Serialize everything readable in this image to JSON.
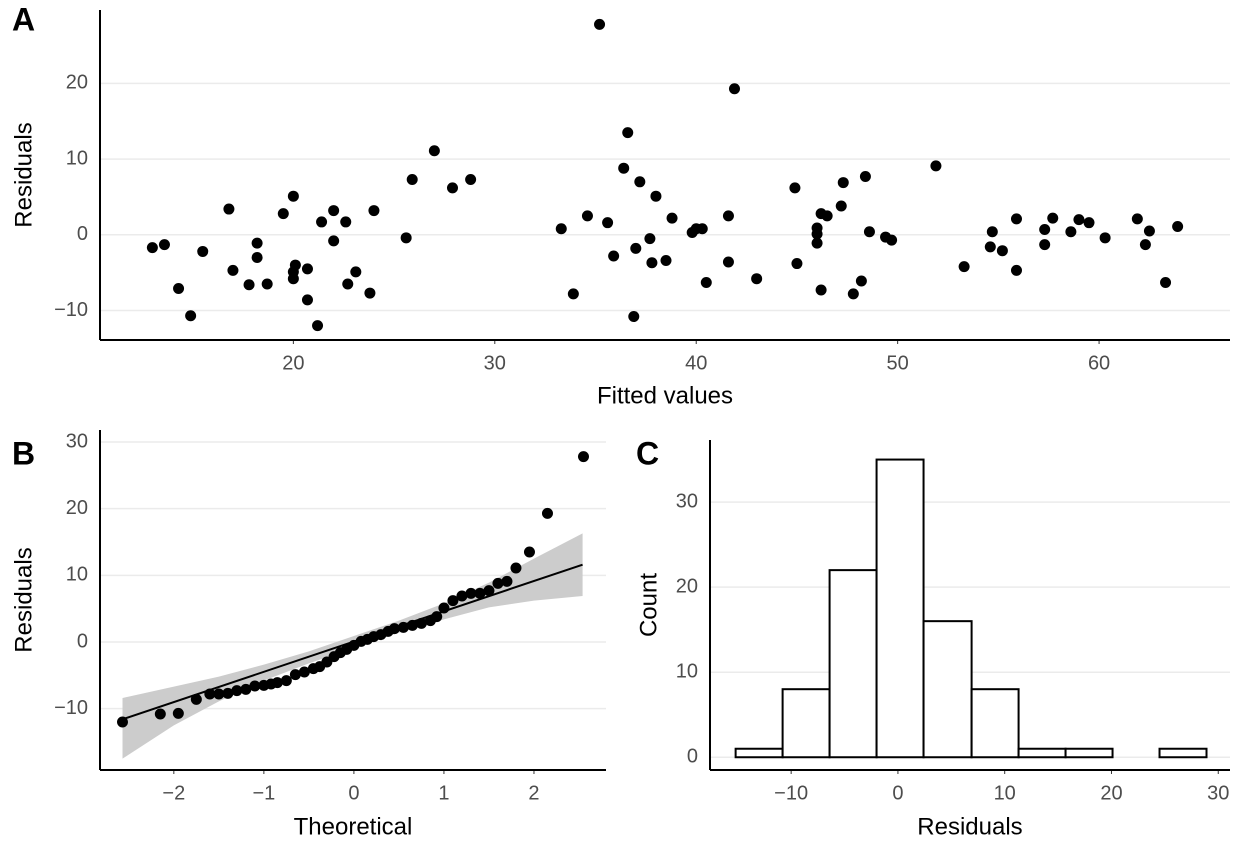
{
  "chart_data": [
    {
      "type": "scatter",
      "panel_label": "A",
      "x_label": "Fitted values",
      "y_label": "Residuals",
      "color": "#000000",
      "x": [
        13.0,
        13.6,
        14.3,
        14.9,
        15.5,
        16.8,
        17.0,
        17.8,
        18.2,
        18.2,
        18.7,
        19.5,
        20.0,
        20.0,
        20.0,
        20.1,
        20.7,
        20.7,
        21.2,
        21.4,
        22.0,
        22.0,
        22.6,
        22.7,
        23.1,
        23.8,
        24.0,
        25.6,
        25.9,
        27.0,
        27.9,
        28.8,
        33.3,
        33.9,
        34.6,
        35.2,
        35.6,
        35.9,
        36.4,
        36.6,
        36.9,
        37.0,
        37.2,
        37.7,
        37.8,
        38.0,
        38.5,
        38.8,
        39.8,
        40.0,
        40.3,
        40.5,
        41.6,
        41.6,
        41.9,
        43.0,
        44.9,
        45.0,
        46.0,
        46.0,
        46.0,
        46.2,
        46.2,
        46.5,
        47.2,
        47.3,
        47.8,
        48.2,
        48.4,
        48.6,
        49.4,
        49.7,
        51.9,
        53.3,
        54.6,
        54.7,
        55.2,
        55.9,
        55.9,
        57.3,
        57.3,
        57.7,
        58.6,
        59.0,
        59.5,
        60.3,
        61.9,
        62.3,
        62.5,
        63.3,
        63.9
      ],
      "y": [
        -1.7,
        -1.3,
        -7.1,
        -10.7,
        -2.2,
        3.4,
        -4.7,
        -6.6,
        -1.1,
        -3.0,
        -6.5,
        2.8,
        5.1,
        -5.8,
        -4.9,
        -4.0,
        -4.5,
        -8.6,
        -12.0,
        1.7,
        -0.8,
        3.2,
        1.7,
        -6.5,
        -4.9,
        -7.7,
        3.2,
        -0.4,
        7.3,
        11.1,
        6.2,
        7.3,
        0.8,
        -7.8,
        2.5,
        27.8,
        1.6,
        -2.8,
        8.8,
        13.5,
        -10.8,
        -1.8,
        7.0,
        -0.5,
        -3.7,
        5.1,
        -3.4,
        2.2,
        0.3,
        0.8,
        0.8,
        -6.3,
        2.5,
        -3.6,
        19.3,
        -5.8,
        6.2,
        -3.8,
        0.1,
        0.9,
        -1.1,
        2.8,
        -7.3,
        2.5,
        3.8,
        6.9,
        -7.8,
        -6.1,
        7.7,
        0.4,
        -0.3,
        -0.7,
        9.1,
        -4.2,
        -1.6,
        0.4,
        -2.1,
        2.1,
        -4.7,
        -1.3,
        0.7,
        2.2,
        0.4,
        2.0,
        1.6,
        -0.4,
        2.1,
        -1.3,
        0.5,
        -6.3,
        1.1
      ],
      "xlim": [
        10.4,
        66.5
      ],
      "ylim": [
        -13.9,
        29.7
      ],
      "xticks": [
        20,
        30,
        40,
        50,
        60
      ],
      "yticks": [
        {
          "value": -10,
          "label": "−10"
        },
        0,
        10,
        20
      ],
      "grid": true
    },
    {
      "type": "qq",
      "panel_label": "B",
      "x_label": "Theoretical",
      "y_label": "Residuals",
      "color": "#000000",
      "x": [
        -2.57,
        -2.15,
        -1.95,
        -1.75,
        -1.6,
        -1.5,
        -1.4,
        -1.3,
        -1.2,
        -1.1,
        -1.0,
        -0.92,
        -0.85,
        -0.75,
        -0.65,
        -0.55,
        -0.45,
        -0.38,
        -0.3,
        -0.22,
        -0.15,
        -0.08,
        0.0,
        0.08,
        0.15,
        0.22,
        0.3,
        0.38,
        0.45,
        0.55,
        0.65,
        0.75,
        0.85,
        0.92,
        1.0,
        1.1,
        1.2,
        1.3,
        1.4,
        1.5,
        1.6,
        1.7,
        1.8,
        1.95,
        2.15,
        2.55
      ],
      "y": [
        -12.0,
        -10.8,
        -10.7,
        -8.6,
        -7.8,
        -7.8,
        -7.7,
        -7.3,
        -7.1,
        -6.6,
        -6.5,
        -6.3,
        -6.1,
        -5.8,
        -4.9,
        -4.5,
        -4.0,
        -3.7,
        -3.0,
        -2.2,
        -1.6,
        -1.1,
        -0.5,
        0.1,
        0.4,
        0.8,
        1.1,
        1.6,
        2.0,
        2.2,
        2.5,
        2.8,
        3.2,
        3.8,
        5.1,
        6.2,
        6.9,
        7.3,
        7.3,
        7.7,
        8.8,
        9.1,
        11.1,
        13.5,
        19.3,
        27.8
      ],
      "reference_line": {
        "x": [
          -2.57,
          2.54
        ],
        "y": [
          -11.6,
          11.6
        ]
      },
      "band": {
        "color": "#cccccc",
        "x": [
          -2.57,
          -2,
          -1.5,
          -1,
          -0.5,
          0,
          0.5,
          1,
          1.5,
          2,
          2.54
        ],
        "upper": [
          -8.4,
          -6.7,
          -5.2,
          -3.4,
          -1.4,
          0.9,
          3.2,
          5.8,
          8.9,
          12.5,
          16.3
        ],
        "lower": [
          -17.5,
          -12.5,
          -8.9,
          -5.8,
          -3.2,
          -0.9,
          1.4,
          3.4,
          5.2,
          6.2,
          6.9
        ]
      },
      "xlim": [
        -2.82,
        2.8
      ],
      "ylim": [
        -19.2,
        31.8
      ],
      "xticks": [
        {
          "value": -2,
          "label": "−2"
        },
        {
          "value": -1,
          "label": "−1"
        },
        0,
        1,
        2
      ],
      "yticks": [
        {
          "value": -10,
          "label": "−10"
        },
        0,
        10,
        20,
        30
      ],
      "grid": true
    },
    {
      "type": "histogram",
      "panel_label": "C",
      "x_label": "Residuals",
      "y_label": "Count",
      "color": "#ffffff",
      "bins": [
        -15.2,
        -10.8,
        -6.4,
        -2.0,
        2.4,
        6.9,
        11.3,
        15.7,
        20.1,
        24.5,
        28.9
      ],
      "values": [
        1,
        8,
        22,
        35,
        16,
        8,
        1,
        1,
        0,
        1
      ],
      "xlim": [
        -17.6,
        31.1
      ],
      "ylim": [
        -1.5,
        37.3
      ],
      "xticks": [
        {
          "value": -10,
          "label": "−10"
        },
        0,
        10,
        20,
        30
      ],
      "yticks": [
        0,
        10,
        20,
        30
      ],
      "grid": true
    }
  ]
}
